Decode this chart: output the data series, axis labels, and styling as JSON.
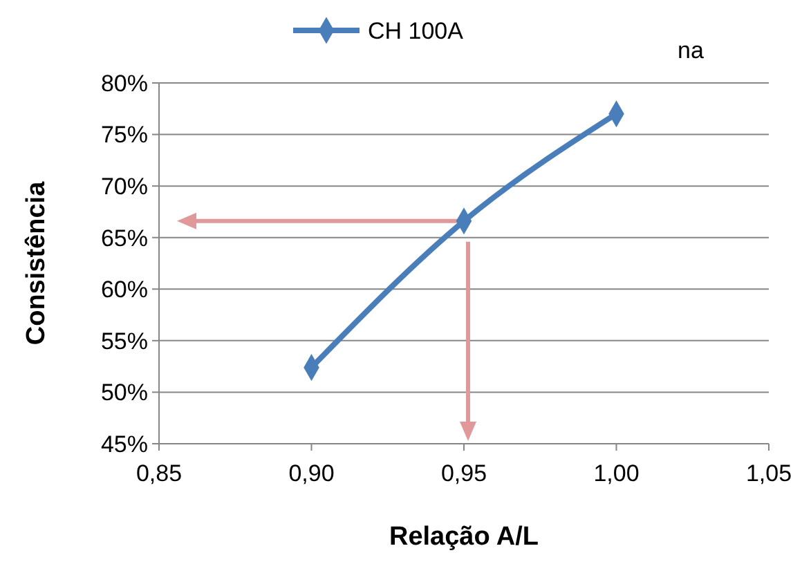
{
  "chart_data": {
    "type": "line",
    "xlabel": "Relação A/L",
    "ylabel": "Consistência",
    "x": [
      0.9,
      0.95,
      1.0
    ],
    "series": [
      {
        "name": "CH 100A",
        "color": "#4a7ebb",
        "values": [
          52.4,
          66.6,
          77.0
        ]
      }
    ],
    "xlim": [
      0.85,
      1.05
    ],
    "xticks": [
      {
        "value": 0.85,
        "label": "0,85"
      },
      {
        "value": 0.9,
        "label": "0,90"
      },
      {
        "value": 0.95,
        "label": "0,95"
      },
      {
        "value": 1.0,
        "label": "1,00"
      },
      {
        "value": 1.05,
        "label": "1,05"
      }
    ],
    "ylim": [
      45,
      80
    ],
    "yticks": [
      {
        "value": 45,
        "label": "45%"
      },
      {
        "value": 50,
        "label": "50%"
      },
      {
        "value": 55,
        "label": "55%"
      },
      {
        "value": 60,
        "label": "60%"
      },
      {
        "value": 65,
        "label": "65%"
      },
      {
        "value": 70,
        "label": "70%"
      },
      {
        "value": 75,
        "label": "75%"
      },
      {
        "value": 80,
        "label": "80%"
      }
    ],
    "grid": "y",
    "legend": "top",
    "marker": "diamond",
    "line_style": "solid",
    "annotations": [
      "na"
    ]
  }
}
